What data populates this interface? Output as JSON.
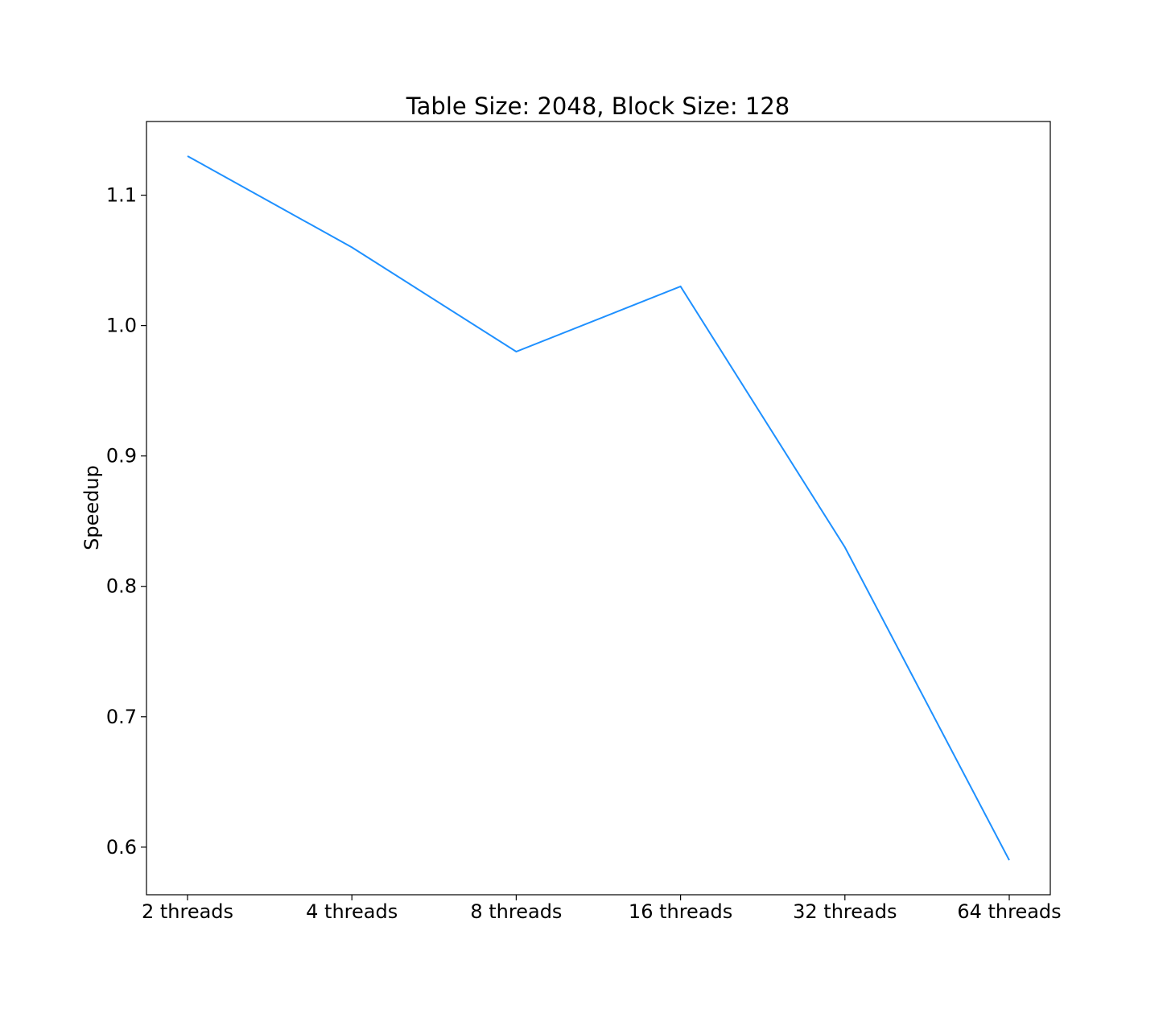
{
  "chart_data": {
    "type": "line",
    "title": "Table Size: 2048, Block Size: 128",
    "xlabel": "",
    "ylabel": "Speedup",
    "categories": [
      "2 threads",
      "4 threads",
      "8 threads",
      "16 threads",
      "32 threads",
      "64 threads"
    ],
    "series": [
      {
        "values": [
          1.13,
          1.06,
          0.98,
          1.03,
          0.83,
          0.59
        ],
        "color": "#1e90ff"
      }
    ],
    "yticks": [
      0.6,
      0.7,
      0.8,
      0.9,
      1.0,
      1.1
    ],
    "ytick_labels": [
      "0.6",
      "0.7",
      "0.8",
      "0.9",
      "1.0",
      "1.1"
    ],
    "ylim": [
      0.5635,
      1.1565
    ],
    "grid": false,
    "legend": "none"
  }
}
